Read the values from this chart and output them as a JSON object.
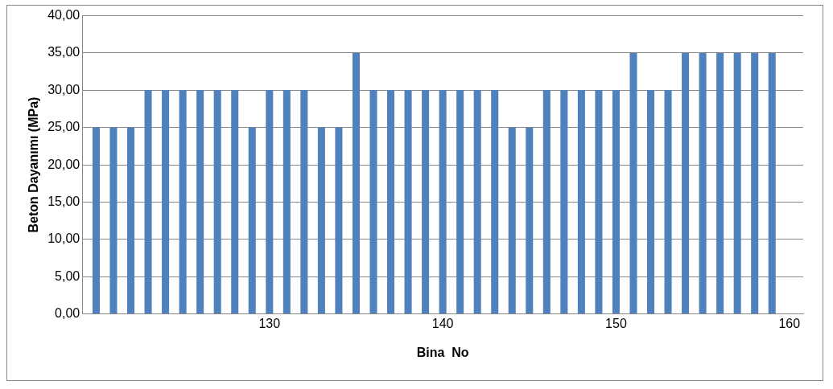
{
  "chart_data": {
    "type": "bar",
    "xlabel": "Bina  No",
    "ylabel": "Beton Dayanımı (MPa)",
    "x": [
      120,
      121,
      122,
      123,
      124,
      125,
      126,
      127,
      128,
      129,
      130,
      131,
      132,
      133,
      134,
      135,
      136,
      137,
      138,
      139,
      140,
      141,
      142,
      143,
      144,
      145,
      146,
      147,
      148,
      149,
      150,
      151,
      152,
      153,
      154,
      155,
      156,
      157,
      158,
      159
    ],
    "values": [
      25,
      25,
      25,
      30,
      30,
      30,
      30,
      30,
      30,
      25,
      30,
      30,
      30,
      25,
      25,
      35,
      30,
      30,
      30,
      30,
      30,
      30,
      30,
      30,
      25,
      25,
      30,
      30,
      30,
      30,
      30,
      35,
      30,
      30,
      35,
      35,
      35,
      35,
      35,
      35
    ],
    "color": "#4f81bd",
    "xlim": [
      119.2,
      160.8
    ],
    "xticks": [
      130,
      140,
      150,
      160
    ],
    "ylim": [
      0,
      40
    ],
    "yticks": [
      {
        "value": 0,
        "label": "0,00"
      },
      {
        "value": 5,
        "label": "5,00"
      },
      {
        "value": 10,
        "label": "10,00"
      },
      {
        "value": 15,
        "label": "15,00"
      },
      {
        "value": 20,
        "label": "20,00"
      },
      {
        "value": 25,
        "label": "25,00"
      },
      {
        "value": 30,
        "label": "30,00"
      },
      {
        "value": 35,
        "label": "35,00"
      },
      {
        "value": 40,
        "label": "40,00"
      }
    ],
    "grid": "y",
    "legend": false
  }
}
